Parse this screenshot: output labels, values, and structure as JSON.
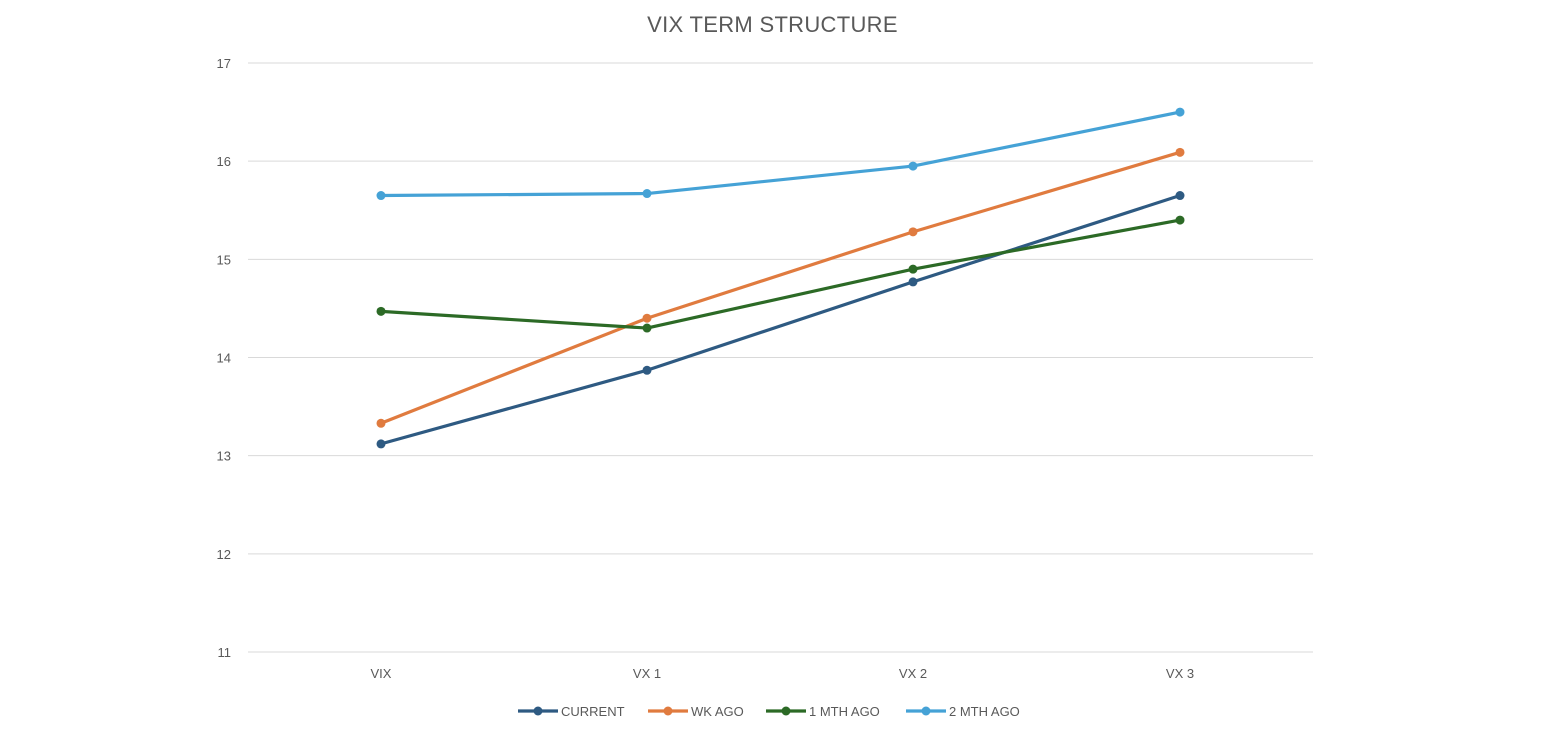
{
  "chart_data": {
    "type": "line",
    "title": "VIX TERM STRUCTURE",
    "xlabel": "",
    "ylabel": "",
    "categories": [
      "VIX",
      "VX 1",
      "VX 2",
      "VX 3"
    ],
    "ylim": [
      11,
      17
    ],
    "yticks": [
      "11",
      "12",
      "13",
      "14",
      "15",
      "16",
      "17"
    ],
    "grid": true,
    "legend_position": "bottom",
    "series": [
      {
        "name": "CURRENT",
        "color": "#2e5a82",
        "values": [
          13.12,
          13.87,
          14.77,
          15.65
        ]
      },
      {
        "name": "WK AGO",
        "color": "#e07b3f",
        "values": [
          13.33,
          14.4,
          15.28,
          16.09
        ]
      },
      {
        "name": "1 MTH AGO",
        "color": "#2c6a26",
        "values": [
          14.47,
          14.3,
          14.9,
          15.4
        ]
      },
      {
        "name": "2 MTH AGO",
        "color": "#45a2d6",
        "values": [
          15.65,
          15.67,
          15.95,
          16.5
        ]
      }
    ]
  }
}
